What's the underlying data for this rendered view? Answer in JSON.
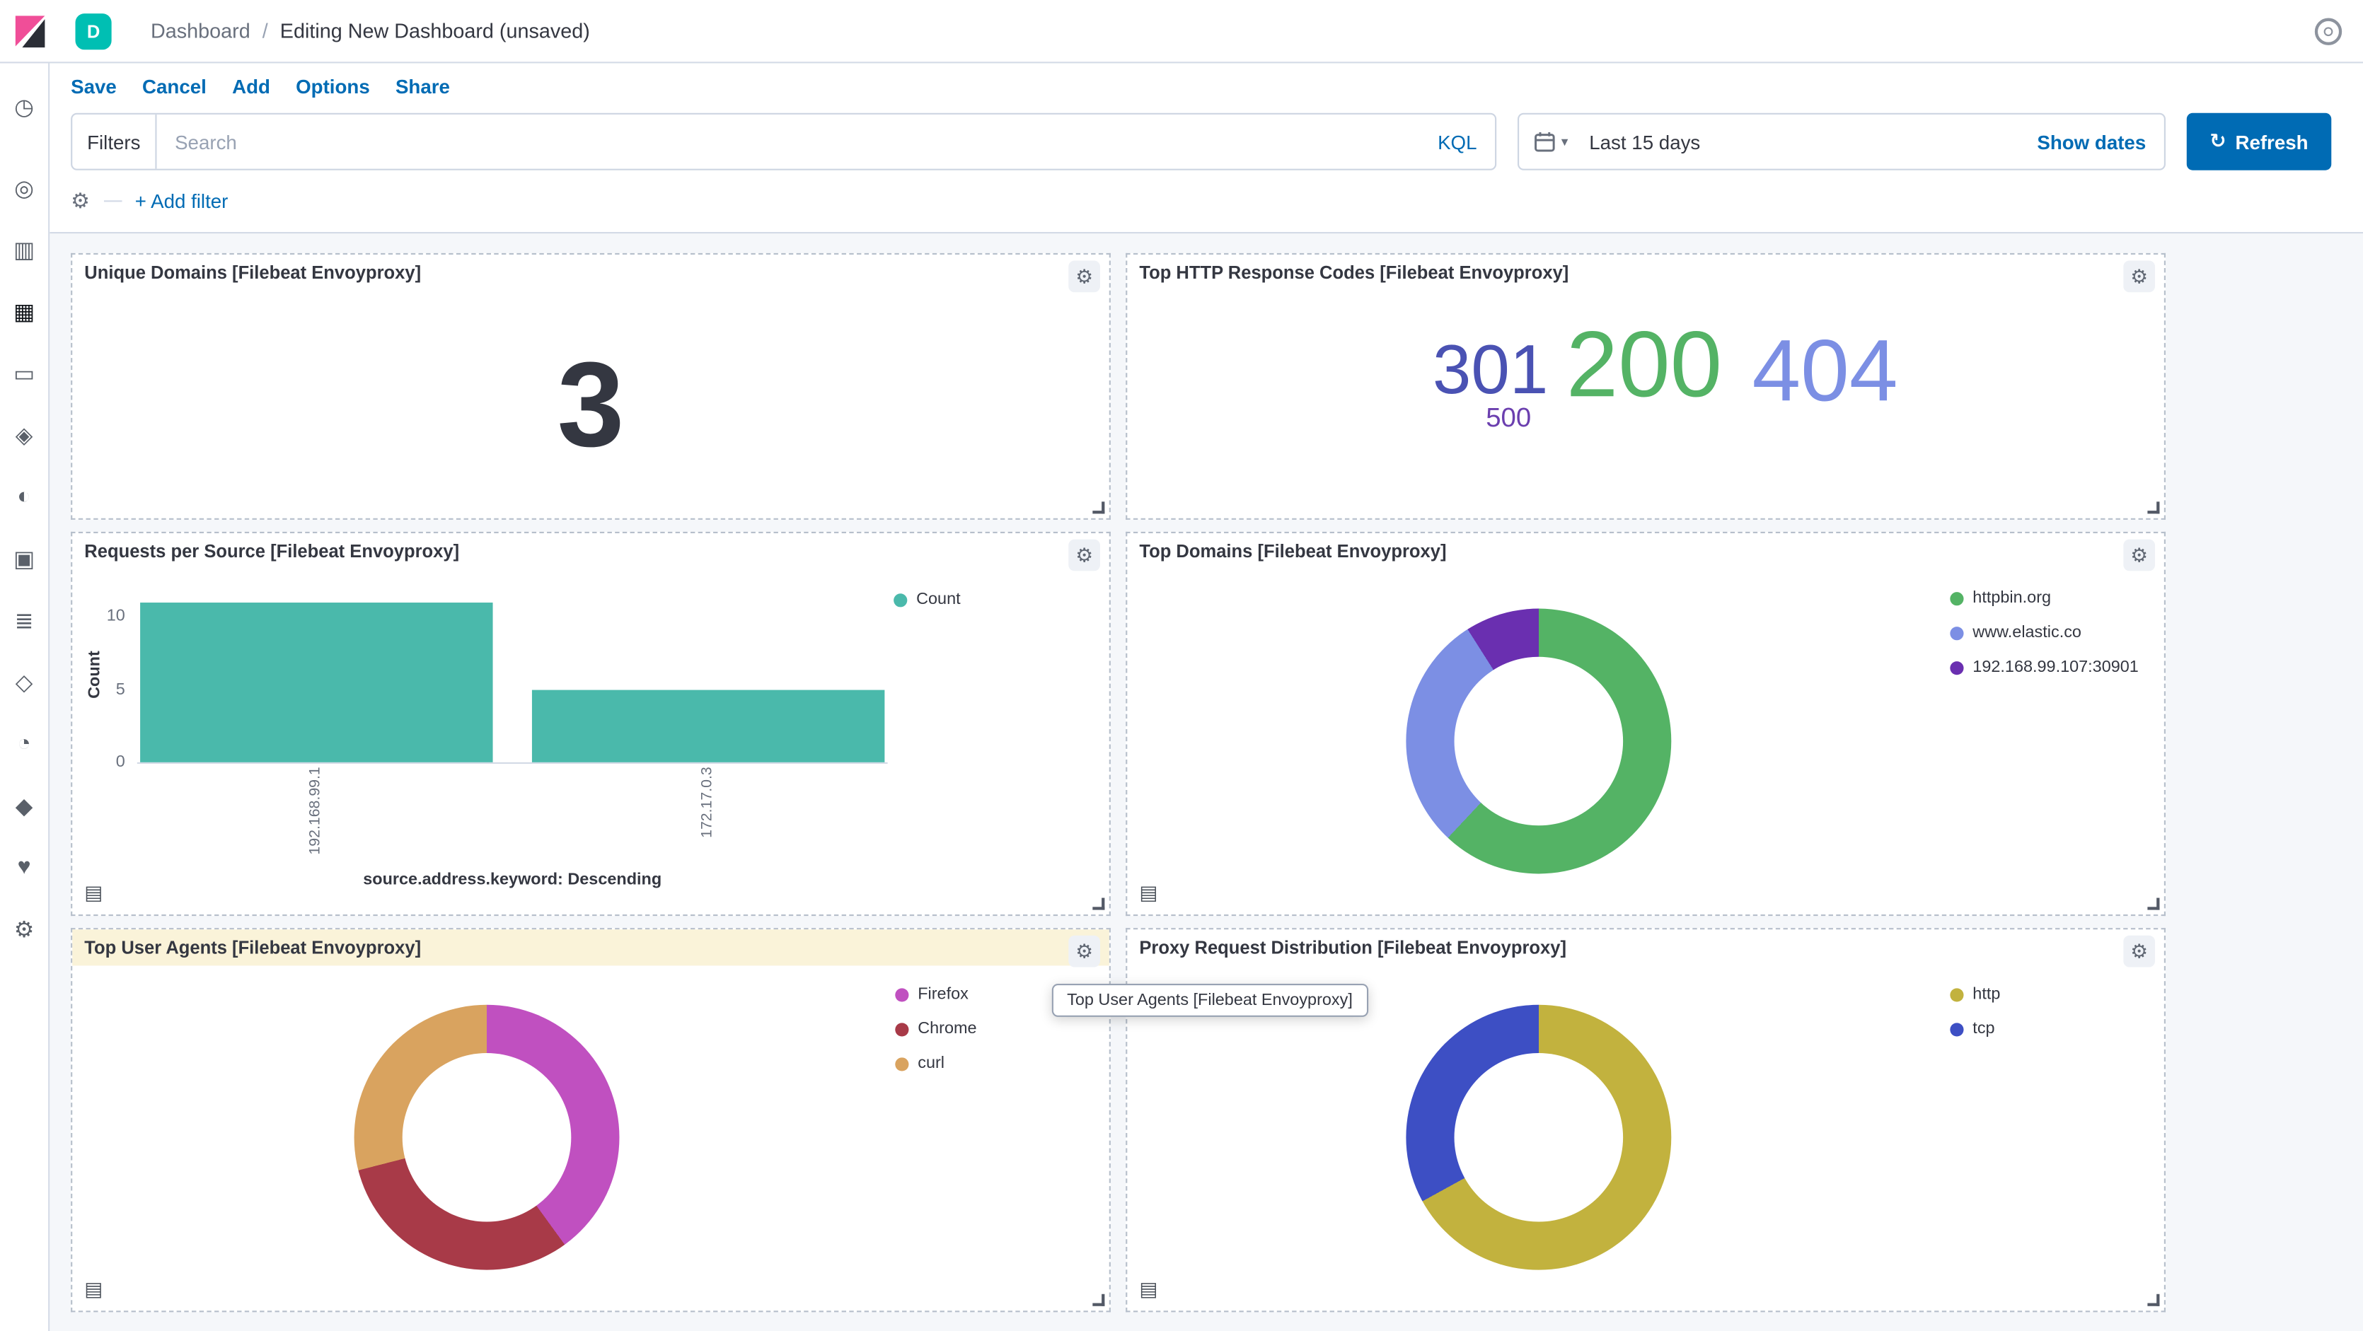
{
  "colors": {
    "primary_blue": "#006BB4",
    "logo_pink": "#F04E98",
    "space_badge_teal": "#00BFB3",
    "page_background": "#F5F7FA"
  },
  "header": {
    "space_initial": "D",
    "separator": "/",
    "breadcrumbs": [
      {
        "label": "Dashboard"
      },
      {
        "label": "Editing New Dashboard (unsaved)"
      }
    ]
  },
  "menu": {
    "items": [
      "Save",
      "Cancel",
      "Add",
      "Options",
      "Share"
    ]
  },
  "filter_bar": {
    "filters_label": "Filters",
    "search_placeholder": "Search",
    "kql_label": "KQL",
    "time_range": "Last 15 days",
    "show_dates": "Show dates",
    "refresh": "Refresh",
    "refresh_glyph": "↻",
    "add_filter": "+ Add filter",
    "gear_glyph": "⚙",
    "chevron_glyph": "▾"
  },
  "sidebar": {
    "items": [
      {
        "id": "recently-viewed",
        "icon": "clock-icon",
        "glyph": "◷"
      },
      {
        "id": "discover",
        "icon": "compass-icon",
        "glyph": "◎"
      },
      {
        "id": "visualize",
        "icon": "bar-chart-icon",
        "glyph": "▥"
      },
      {
        "id": "dashboard",
        "icon": "dashboard-icon",
        "glyph": "▦",
        "active": true
      },
      {
        "id": "canvas",
        "icon": "canvas-icon",
        "glyph": "▭"
      },
      {
        "id": "maps",
        "icon": "maps-icon",
        "glyph": "◈"
      },
      {
        "id": "machine-learning",
        "icon": "ml-icon",
        "glyph": "◐"
      },
      {
        "id": "metrics",
        "icon": "metrics-icon",
        "glyph": "▣"
      },
      {
        "id": "logs",
        "icon": "logs-icon",
        "glyph": "≣"
      },
      {
        "id": "apm",
        "icon": "apm-icon",
        "glyph": "◇"
      },
      {
        "id": "uptime",
        "icon": "uptime-icon",
        "glyph": "◔"
      },
      {
        "id": "siem",
        "icon": "shield-icon",
        "glyph": "◆"
      },
      {
        "id": "monitoring",
        "icon": "heartbeat-icon",
        "glyph": "♥"
      },
      {
        "id": "management",
        "icon": "gear-icon",
        "glyph": "⚙"
      }
    ]
  },
  "panels": [
    {
      "title": "Unique Domains [Filebeat Envoyproxy]"
    },
    {
      "title": "Top HTTP Response Codes [Filebeat Envoyproxy]"
    },
    {
      "title": "Requests per Source [Filebeat Envoyproxy]"
    },
    {
      "title": "Top Domains [Filebeat Envoyproxy]"
    },
    {
      "title": "Top User Agents [Filebeat Envoyproxy]"
    },
    {
      "title": "Proxy Request Distribution [Filebeat Envoyproxy]"
    }
  ],
  "tooltip": {
    "text": "Top User Agents [Filebeat Envoyproxy]"
  },
  "chart_data": [
    {
      "type": "metric",
      "title": "Unique Domains [Filebeat Envoyproxy]",
      "value": "3"
    },
    {
      "type": "tag_cloud",
      "title": "Top HTTP Response Codes [Filebeat Envoyproxy]",
      "tags": [
        {
          "label": "301",
          "size": 46,
          "color": "#4a52b3"
        },
        {
          "label": "200",
          "size": 62,
          "color": "#54b365"
        },
        {
          "label": "404",
          "size": 58,
          "color": "#7c8fe4"
        },
        {
          "label": "500",
          "size": 18,
          "color": "#6b3faf"
        }
      ]
    },
    {
      "type": "bar",
      "title": "Requests per Source [Filebeat Envoyproxy]",
      "series_name": "Count",
      "categories": [
        "192.168.99.1",
        "172.17.0.3"
      ],
      "values": [
        11,
        5
      ],
      "ymax": 11.5,
      "yticks": [
        0,
        5,
        10
      ],
      "ylabel": "Count",
      "xlabel": "source.address.keyword: Descending",
      "color": "#4ab9ab",
      "legend_position": "right",
      "grid": false
    },
    {
      "type": "donut",
      "title": "Top Domains [Filebeat Envoyproxy]",
      "legend_position": "right",
      "slices": [
        {
          "label": "httpbin.org",
          "pct": 62,
          "color": "#54b365"
        },
        {
          "label": "www.elastic.co",
          "pct": 29,
          "color": "#7c8fe4"
        },
        {
          "label": "192.168.99.107:30901",
          "pct": 9,
          "color": "#6a2fb0"
        }
      ]
    },
    {
      "type": "donut",
      "title": "Top User Agents [Filebeat Envoyproxy]",
      "legend_position": "right",
      "slices": [
        {
          "label": "Firefox",
          "pct": 40,
          "color": "#c050c0"
        },
        {
          "label": "Chrome",
          "pct": 31,
          "color": "#a83a48"
        },
        {
          "label": "curl",
          "pct": 29,
          "color": "#d9a35f"
        }
      ]
    },
    {
      "type": "donut",
      "title": "Proxy Request Distribution [Filebeat Envoyproxy]",
      "legend_position": "right",
      "slices": [
        {
          "label": "http",
          "pct": 67,
          "color": "#c2b23e"
        },
        {
          "label": "tcp",
          "pct": 33,
          "color": "#3d4fc4"
        }
      ]
    }
  ]
}
